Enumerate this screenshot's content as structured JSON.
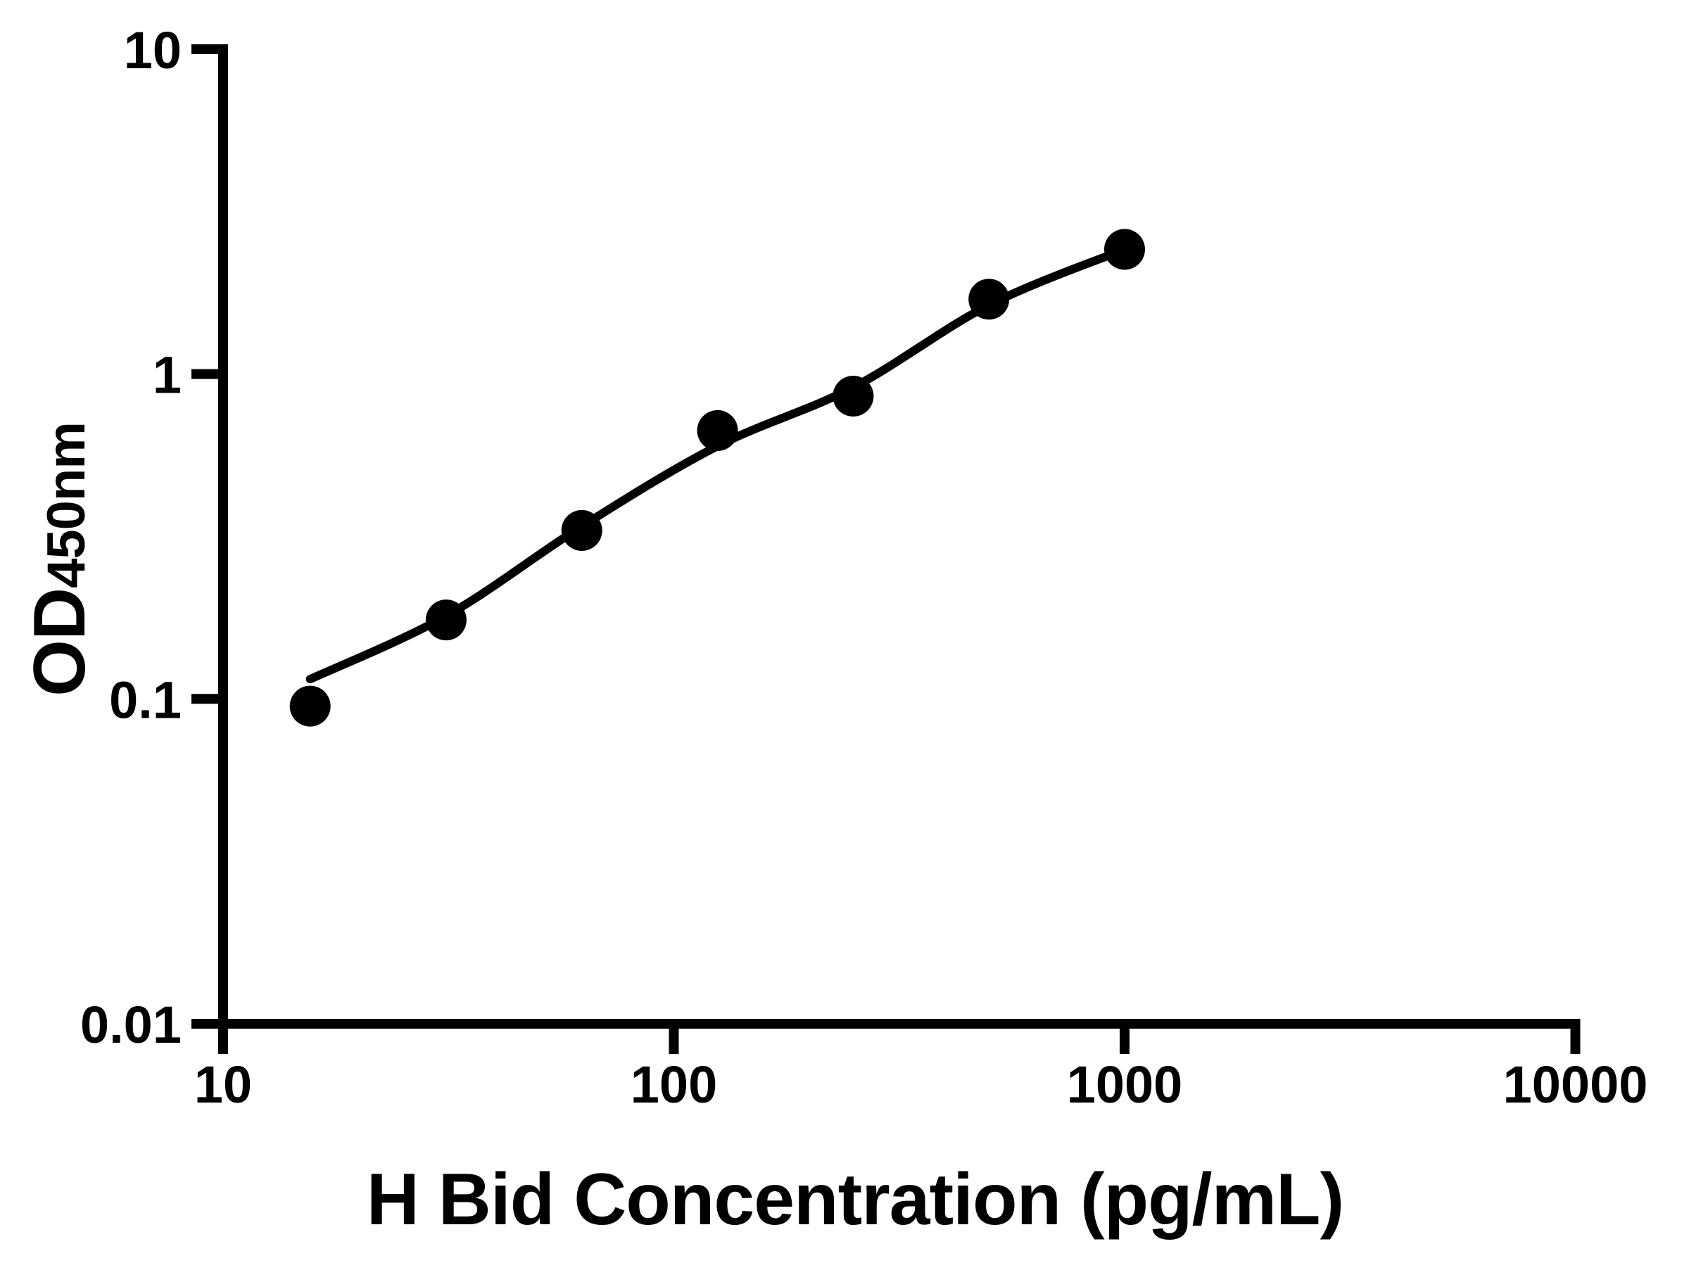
{
  "chart_data": {
    "type": "scatter",
    "title": "",
    "xlabel": "H Bid Concentration (pg/mL)",
    "ylabel_main": "OD",
    "ylabel_sub": "450nm",
    "x_scale": "log",
    "y_scale": "log",
    "xlim": [
      10,
      10000
    ],
    "ylim": [
      0.01,
      10
    ],
    "grid": false,
    "legend": "none",
    "x_ticks": [
      {
        "value": 10,
        "label": "10"
      },
      {
        "value": 100,
        "label": "100"
      },
      {
        "value": 1000,
        "label": "1000"
      },
      {
        "value": 10000,
        "label": "10000"
      }
    ],
    "y_ticks": [
      {
        "value": 10,
        "label": "10"
      },
      {
        "value": 1,
        "label": "1"
      },
      {
        "value": 0.1,
        "label": "0.1"
      },
      {
        "value": 0.01,
        "label": "0.01"
      }
    ],
    "points": [
      {
        "x": 15.6,
        "od": 0.095
      },
      {
        "x": 31.25,
        "od": 0.175
      },
      {
        "x": 62.5,
        "od": 0.33
      },
      {
        "x": 125,
        "od": 0.67
      },
      {
        "x": 250,
        "od": 0.855
      },
      {
        "x": 500,
        "od": 1.7
      },
      {
        "x": 1000,
        "od": 2.42
      }
    ],
    "fit_curve": [
      {
        "x": 15.6,
        "od": 0.115
      },
      {
        "x": 31.25,
        "od": 0.18
      },
      {
        "x": 62.5,
        "od": 0.34
      },
      {
        "x": 125,
        "od": 0.6
      },
      {
        "x": 250,
        "od": 0.91
      },
      {
        "x": 500,
        "od": 1.63
      },
      {
        "x": 1000,
        "od": 2.42
      }
    ],
    "colors": {
      "points": "#000000",
      "curve": "#000000",
      "axis": "#000000",
      "background": "#ffffff"
    }
  }
}
